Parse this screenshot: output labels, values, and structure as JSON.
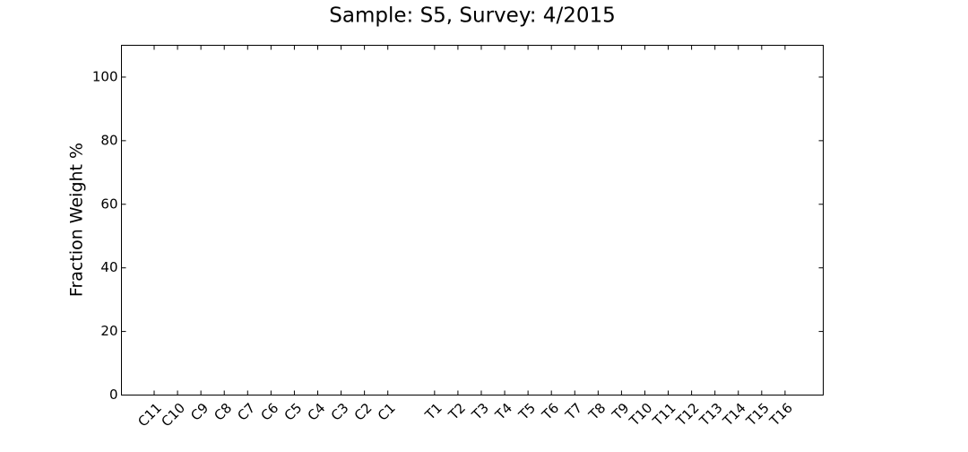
{
  "chart_data": {
    "type": "bar",
    "title": "Sample: S5, Survey: 4/2015",
    "y_label": "Fraction Weight %",
    "categories": [
      "C11",
      "C10",
      "C9",
      "C8",
      "C7",
      "C6",
      "C5",
      "C4",
      "C3",
      "C2",
      "C1",
      null,
      "T1",
      "T2",
      "T3",
      "T4",
      "T5",
      "T6",
      "T7",
      "T8",
      "T9",
      "T10",
      "T11",
      "T12",
      "T13",
      "T14",
      "T15",
      "T16"
    ],
    "ylim": [
      0,
      110
    ],
    "yticks": [
      0,
      20,
      40,
      60,
      80,
      100
    ]
  }
}
